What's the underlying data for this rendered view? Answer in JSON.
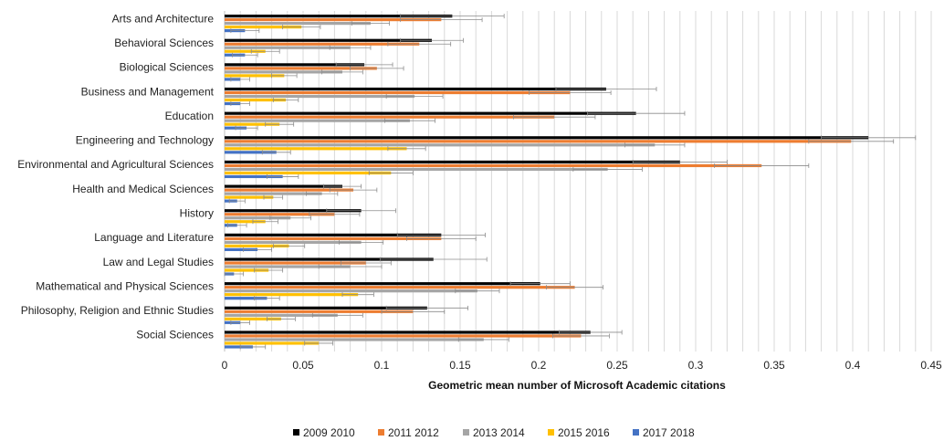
{
  "chart_data": {
    "type": "bar",
    "orientation": "horizontal",
    "title": "",
    "xlabel": "Geometric mean number of Microsoft Academic citations",
    "ylabel": "",
    "xlim": [
      0,
      0.45
    ],
    "x_ticks": [
      "0",
      "0.05",
      "0.1",
      "0.15",
      "0.2",
      "0.25",
      "0.3",
      "0.35",
      "0.4",
      "0.45"
    ],
    "grid": "vertical",
    "legend_position": "bottom",
    "error_bars": true,
    "categories": [
      "Arts and Architecture",
      "Behavioral Sciences",
      "Biological Sciences",
      "Business and Management",
      "Education",
      "Engineering and Technology",
      "Environmental and Agricultural Sciences",
      "Health and Medical Sciences",
      "History",
      "Language and Literature",
      "Law and Legal Studies",
      "Mathematical and Physical Sciences",
      "Philosophy, Religion and Ethnic Studies",
      "Social Sciences"
    ],
    "series": [
      {
        "name": "2009 2010",
        "color": "#000000",
        "values": [
          0.145,
          0.132,
          0.089,
          0.243,
          0.262,
          0.41,
          0.29,
          0.075,
          0.087,
          0.138,
          0.133,
          0.201,
          0.129,
          0.233
        ],
        "errors": [
          0.033,
          0.02,
          0.018,
          0.032,
          0.031,
          0.03,
          0.03,
          0.012,
          0.022,
          0.028,
          0.034,
          0.019,
          0.026,
          0.02
        ]
      },
      {
        "name": "2011 2012",
        "color": "#ED7D31",
        "values": [
          0.138,
          0.124,
          0.097,
          0.22,
          0.21,
          0.399,
          0.342,
          0.082,
          0.07,
          0.138,
          0.09,
          0.223,
          0.12,
          0.227
        ],
        "errors": [
          0.026,
          0.02,
          0.017,
          0.026,
          0.026,
          0.027,
          0.03,
          0.015,
          0.016,
          0.022,
          0.016,
          0.018,
          0.02,
          0.018
        ]
      },
      {
        "name": "2013 2014",
        "color": "#A5A5A5",
        "values": [
          0.093,
          0.08,
          0.075,
          0.121,
          0.118,
          0.274,
          0.244,
          0.062,
          0.042,
          0.087,
          0.08,
          0.161,
          0.072,
          0.165
        ],
        "errors": [
          0.012,
          0.013,
          0.013,
          0.018,
          0.016,
          0.019,
          0.022,
          0.01,
          0.013,
          0.014,
          0.02,
          0.014,
          0.016,
          0.016
        ]
      },
      {
        "name": "2015 2016",
        "color": "#FFC000",
        "values": [
          0.049,
          0.026,
          0.038,
          0.039,
          0.035,
          0.116,
          0.106,
          0.031,
          0.026,
          0.041,
          0.028,
          0.085,
          0.036,
          0.06
        ],
        "errors": [
          0.012,
          0.009,
          0.008,
          0.008,
          0.009,
          0.012,
          0.014,
          0.006,
          0.008,
          0.01,
          0.009,
          0.01,
          0.009,
          0.009
        ]
      },
      {
        "name": "2017 2018",
        "color": "#4472C4",
        "values": [
          0.013,
          0.013,
          0.01,
          0.01,
          0.014,
          0.033,
          0.037,
          0.008,
          0.008,
          0.021,
          0.006,
          0.027,
          0.01,
          0.018
        ],
        "errors": [
          0.009,
          0.008,
          0.006,
          0.006,
          0.007,
          0.009,
          0.01,
          0.005,
          0.006,
          0.009,
          0.006,
          0.008,
          0.006,
          0.008
        ]
      }
    ]
  }
}
